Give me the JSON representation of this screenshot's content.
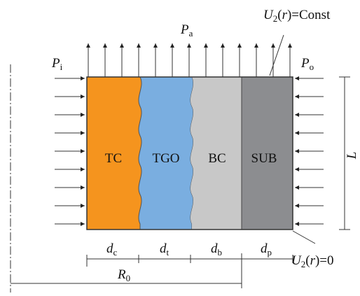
{
  "pressures": {
    "inner": {
      "symbol": "P",
      "sub": "i"
    },
    "axial": {
      "symbol": "P",
      "sub": "a"
    },
    "outer": {
      "symbol": "P",
      "sub": "o"
    }
  },
  "layers": [
    {
      "id": "tc",
      "label": "TC",
      "color": "#f5941e",
      "thickness": {
        "symbol": "d",
        "sub": "c"
      }
    },
    {
      "id": "tgo",
      "label": "TGO",
      "color": "#7aaee0",
      "thickness": {
        "symbol": "d",
        "sub": "t"
      }
    },
    {
      "id": "bc",
      "label": "BC",
      "color": "#c8c8c8",
      "thickness": {
        "symbol": "d",
        "sub": "b"
      }
    },
    {
      "id": "sub",
      "label": "SUB",
      "color": "#8c8d90",
      "thickness": {
        "symbol": "d",
        "sub": "p"
      }
    }
  ],
  "length": {
    "symbol": "L"
  },
  "radius": {
    "symbol": "R",
    "sub": "0"
  },
  "bc_top": {
    "pre": "U",
    "sub": "2",
    "var": "r",
    "rhs": "=Const"
  },
  "bc_bottom": {
    "pre": "U",
    "sub": "2",
    "var": "r",
    "rhs": "=0"
  }
}
